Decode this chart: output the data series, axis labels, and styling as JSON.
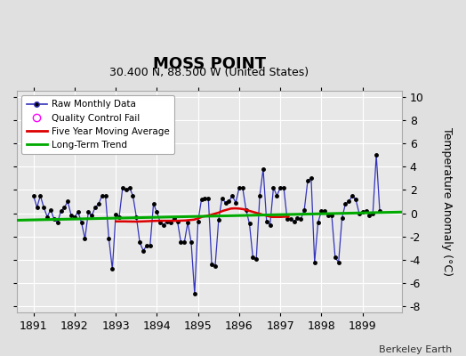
{
  "title": "MOSS POINT",
  "subtitle": "30.400 N, 88.500 W (United States)",
  "credit": "Berkeley Earth",
  "ylabel": "Temperature Anomaly (°C)",
  "xlim": [
    1890.6,
    1899.95
  ],
  "ylim": [
    -8.5,
    10.5
  ],
  "yticks": [
    -8,
    -6,
    -4,
    -2,
    0,
    2,
    4,
    6,
    8,
    10
  ],
  "xticks": [
    1891,
    1892,
    1893,
    1894,
    1895,
    1896,
    1897,
    1898,
    1899
  ],
  "plot_bg": "#e8e8e8",
  "fig_bg": "#e0e0e0",
  "raw_color": "#3333bb",
  "dot_color": "#000000",
  "moving_avg_color": "#dd0000",
  "trend_color": "#00aa00",
  "raw_data": [
    1.5,
    0.5,
    1.5,
    0.5,
    -0.3,
    0.3,
    -0.5,
    -0.8,
    0.2,
    0.5,
    1.0,
    -0.2,
    -0.3,
    0.1,
    -0.8,
    -2.2,
    0.1,
    -0.2,
    0.5,
    0.8,
    1.5,
    1.5,
    -2.2,
    -4.8,
    -0.1,
    -0.3,
    2.2,
    2.0,
    2.2,
    1.5,
    -0.3,
    -2.5,
    -3.2,
    -2.8,
    -2.8,
    0.8,
    0.1,
    -0.8,
    -1.0,
    -0.7,
    -0.8,
    -0.4,
    -0.7,
    -2.5,
    -2.5,
    -0.8,
    -2.5,
    -6.9,
    -0.7,
    1.2,
    1.3,
    1.3,
    -4.4,
    -4.5,
    -0.6,
    1.3,
    0.9,
    1.0,
    1.5,
    0.9,
    2.2,
    2.2,
    0.3,
    -0.9,
    -3.8,
    -3.9,
    1.5,
    3.8,
    -0.7,
    -1.0,
    2.2,
    1.5,
    2.2,
    2.2,
    -0.5,
    -0.5,
    -0.7,
    -0.4,
    -0.5,
    0.3,
    2.8,
    3.0,
    -4.2,
    -0.8,
    0.2,
    0.2,
    -0.2,
    -0.2,
    -3.8,
    -4.2,
    -0.4,
    0.8,
    1.0,
    1.5,
    1.2,
    0.0,
    0.1,
    0.2,
    -0.2,
    0.0,
    5.0,
    0.2
  ],
  "moving_avg_x": [
    1893.0,
    1893.2,
    1893.5,
    1893.8,
    1894.0,
    1894.2,
    1894.5,
    1894.7,
    1894.9,
    1895.0,
    1895.1,
    1895.3,
    1895.5,
    1895.6,
    1895.7,
    1895.8,
    1895.9,
    1896.0,
    1896.1,
    1896.2,
    1896.3,
    1896.5,
    1896.6,
    1896.7,
    1896.8,
    1897.0,
    1897.1,
    1897.2
  ],
  "moving_avg_y": [
    -0.7,
    -0.7,
    -0.72,
    -0.68,
    -0.65,
    -0.65,
    -0.65,
    -0.62,
    -0.55,
    -0.45,
    -0.3,
    -0.15,
    0.05,
    0.2,
    0.3,
    0.4,
    0.42,
    0.4,
    0.35,
    0.25,
    0.15,
    -0.05,
    -0.15,
    -0.25,
    -0.32,
    -0.32,
    -0.3,
    -0.3
  ],
  "trend_x": [
    1890.6,
    1899.95
  ],
  "trend_y": [
    -0.6,
    0.1
  ]
}
